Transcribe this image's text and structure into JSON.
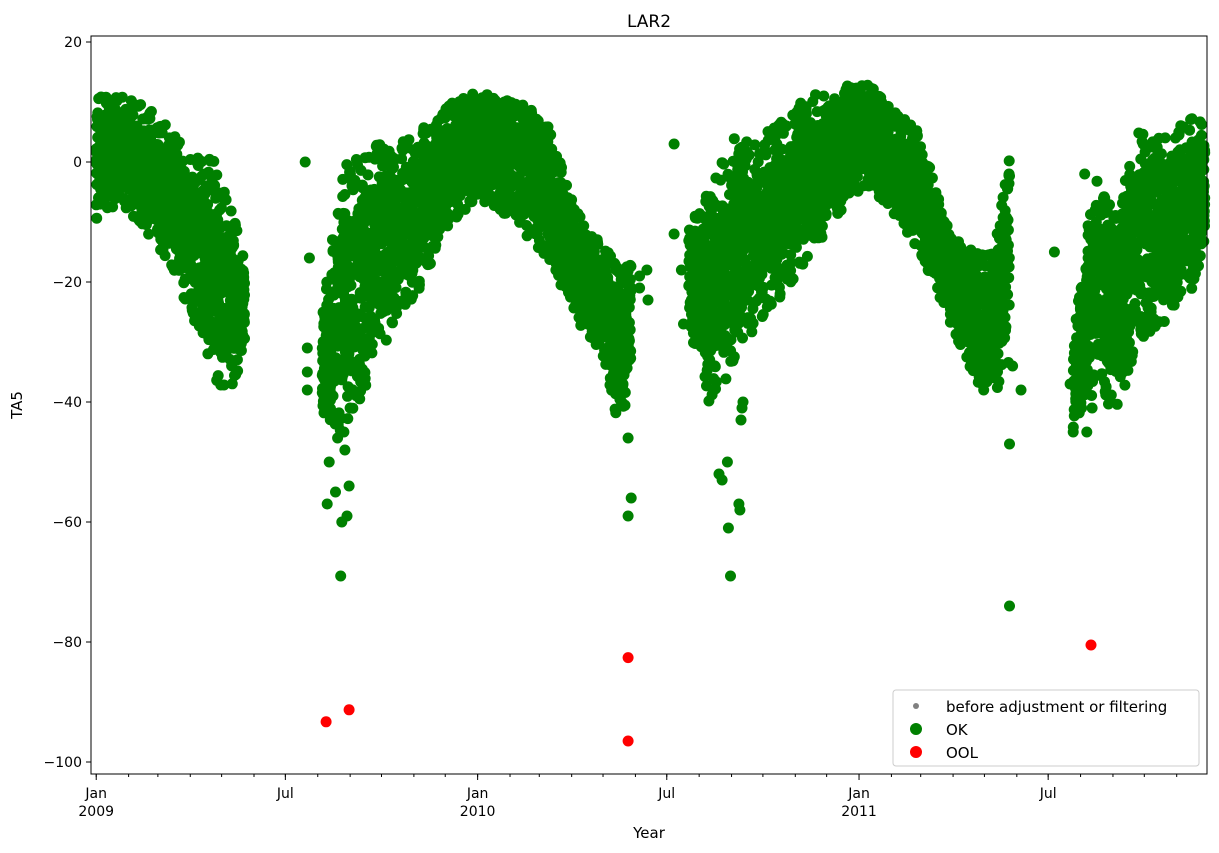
{
  "chart_data": {
    "type": "scatter",
    "title": "LAR2",
    "xlabel": "Year",
    "ylabel": "TA5",
    "xlim": [
      "2008-12-27",
      "2011-11-30"
    ],
    "ylim": [
      -102,
      21
    ],
    "y_ticks": [
      20,
      0,
      -20,
      -40,
      -60,
      -80,
      -100
    ],
    "x_major_ticks": [
      {
        "date": "2009-01-01",
        "label": "Jan",
        "year_label": "2009"
      },
      {
        "date": "2009-07-01",
        "label": "Jul",
        "year_label": ""
      },
      {
        "date": "2010-01-01",
        "label": "Jan",
        "year_label": "2010"
      },
      {
        "date": "2010-07-01",
        "label": "Jul",
        "year_label": ""
      },
      {
        "date": "2011-01-01",
        "label": "Jan",
        "year_label": "2011"
      },
      {
        "date": "2011-07-01",
        "label": "Jul",
        "year_label": ""
      }
    ],
    "grid": false,
    "legend_position": "bottom-right",
    "colors": {
      "before": "#808080",
      "ok": "#008000",
      "ool": "#ff0000"
    },
    "series": [
      {
        "name": "before adjustment or filtering",
        "marker": "small-dot",
        "color": "#808080",
        "points": []
      },
      {
        "name": "OK",
        "marker": "dot",
        "color": "#008000",
        "seasonal_band": [
          {
            "x": "2009-01-01",
            "low": -10,
            "high": 13
          },
          {
            "x": "2009-01-25",
            "low": -7,
            "high": 11
          },
          {
            "x": "2009-02-20",
            "low": -12,
            "high": 9
          },
          {
            "x": "2009-03-15",
            "low": -18,
            "high": 5
          },
          {
            "x": "2009-04-05",
            "low": -27,
            "high": 2
          },
          {
            "x": "2009-04-25",
            "low": -38,
            "high": 0
          },
          {
            "x": "2009-05-15",
            "low": -37,
            "high": -9
          },
          {
            "x": "2009-05-23",
            "low": -31,
            "high": -17
          },
          {
            "x": "2009-08-05",
            "low": -45,
            "high": -25
          },
          {
            "x": "2009-08-25",
            "low": -45,
            "high": -1
          },
          {
            "x": "2009-09-15",
            "low": -40,
            "high": 3
          },
          {
            "x": "2009-10-10",
            "low": -28,
            "high": 3
          },
          {
            "x": "2009-11-05",
            "low": -22,
            "high": 5
          },
          {
            "x": "2009-12-01",
            "low": -12,
            "high": 9
          },
          {
            "x": "2009-12-25",
            "low": -7,
            "high": 12
          },
          {
            "x": "2010-01-20",
            "low": -8,
            "high": 11
          },
          {
            "x": "2010-02-15",
            "low": -12,
            "high": 10
          },
          {
            "x": "2010-03-10",
            "low": -17,
            "high": 6
          },
          {
            "x": "2010-04-05",
            "low": -26,
            "high": -8
          },
          {
            "x": "2010-04-30",
            "low": -33,
            "high": -14
          },
          {
            "x": "2010-05-18",
            "low": -45,
            "high": -17
          },
          {
            "x": "2010-05-28",
            "low": -34,
            "high": -16
          },
          {
            "x": "2010-07-22",
            "low": -28,
            "high": -9
          },
          {
            "x": "2010-08-10",
            "low": -40,
            "high": -5
          },
          {
            "x": "2010-09-01",
            "low": -35,
            "high": 4
          },
          {
            "x": "2010-09-25",
            "low": -27,
            "high": 3
          },
          {
            "x": "2010-10-20",
            "low": -22,
            "high": 8
          },
          {
            "x": "2010-11-15",
            "low": -16,
            "high": 11
          },
          {
            "x": "2010-12-10",
            "low": -9,
            "high": 12
          },
          {
            "x": "2011-01-05",
            "low": -4,
            "high": 14
          },
          {
            "x": "2011-02-01",
            "low": -8,
            "high": 9
          },
          {
            "x": "2011-02-28",
            "low": -15,
            "high": 5
          },
          {
            "x": "2011-03-25",
            "low": -25,
            "high": -10
          },
          {
            "x": "2011-04-20",
            "low": -36,
            "high": -15
          },
          {
            "x": "2011-05-10",
            "low": -40,
            "high": -15
          },
          {
            "x": "2011-05-25",
            "low": -33,
            "high": 1
          },
          {
            "x": "2011-07-25",
            "low": -45,
            "high": -28
          },
          {
            "x": "2011-08-15",
            "low": -38,
            "high": -2
          },
          {
            "x": "2011-09-05",
            "low": -42,
            "high": -9
          },
          {
            "x": "2011-09-25",
            "low": -30,
            "high": 6
          },
          {
            "x": "2011-10-20",
            "low": -27,
            "high": 4
          },
          {
            "x": "2011-11-12",
            "low": -23,
            "high": 7
          },
          {
            "x": "2011-11-28",
            "low": -14,
            "high": 8
          }
        ],
        "outlier_points": [
          {
            "x": "2009-07-20",
            "y": 0
          },
          {
            "x": "2009-07-24",
            "y": -16
          },
          {
            "x": "2009-07-22",
            "y": -31
          },
          {
            "x": "2009-07-22",
            "y": -35
          },
          {
            "x": "2009-07-22",
            "y": -38
          },
          {
            "x": "2009-08-10",
            "y": -57
          },
          {
            "x": "2009-08-12",
            "y": -50
          },
          {
            "x": "2009-08-18",
            "y": -55
          },
          {
            "x": "2009-08-20",
            "y": -46
          },
          {
            "x": "2009-08-23",
            "y": -69
          },
          {
            "x": "2009-08-24",
            "y": -60
          },
          {
            "x": "2009-08-27",
            "y": -48
          },
          {
            "x": "2009-08-26",
            "y": -45
          },
          {
            "x": "2009-08-29",
            "y": -59
          },
          {
            "x": "2009-08-31",
            "y": -54
          },
          {
            "x": "2009-09-01",
            "y": -41
          },
          {
            "x": "2010-05-25",
            "y": -46
          },
          {
            "x": "2010-05-25",
            "y": -59
          },
          {
            "x": "2010-05-28",
            "y": -56
          },
          {
            "x": "2010-06-05",
            "y": -21
          },
          {
            "x": "2010-06-05",
            "y": -19
          },
          {
            "x": "2010-06-12",
            "y": -18
          },
          {
            "x": "2010-06-13",
            "y": -23
          },
          {
            "x": "2010-07-08",
            "y": 3
          },
          {
            "x": "2010-07-08",
            "y": -12
          },
          {
            "x": "2010-07-15",
            "y": -18
          },
          {
            "x": "2010-07-17",
            "y": -27
          },
          {
            "x": "2010-08-20",
            "y": -52
          },
          {
            "x": "2010-08-23",
            "y": -53
          },
          {
            "x": "2010-08-28",
            "y": -50
          },
          {
            "x": "2010-08-29",
            "y": -61
          },
          {
            "x": "2010-08-31",
            "y": -69
          },
          {
            "x": "2010-09-08",
            "y": -57
          },
          {
            "x": "2010-09-09",
            "y": -58
          },
          {
            "x": "2010-09-10",
            "y": -43
          },
          {
            "x": "2010-09-11",
            "y": -41
          },
          {
            "x": "2010-09-12",
            "y": -40
          },
          {
            "x": "2011-05-25",
            "y": -47
          },
          {
            "x": "2011-05-25",
            "y": -74
          },
          {
            "x": "2011-05-28",
            "y": -34
          },
          {
            "x": "2011-06-05",
            "y": -38
          },
          {
            "x": "2011-07-07",
            "y": -15
          },
          {
            "x": "2011-07-22",
            "y": -37
          },
          {
            "x": "2011-07-25",
            "y": -45
          },
          {
            "x": "2011-08-02",
            "y": -41
          },
          {
            "x": "2011-08-05",
            "y": -2
          },
          {
            "x": "2011-08-07",
            "y": -45
          },
          {
            "x": "2011-08-12",
            "y": -41
          },
          {
            "x": "2011-08-15",
            "y": -8
          }
        ]
      },
      {
        "name": "OOL",
        "marker": "dot",
        "color": "#ff0000",
        "points": [
          {
            "x": "2009-08-09",
            "y": -93.3
          },
          {
            "x": "2009-08-31",
            "y": -91.3
          },
          {
            "x": "2010-05-25",
            "y": -82.6
          },
          {
            "x": "2010-05-25",
            "y": -96.5
          },
          {
            "x": "2011-08-11",
            "y": -80.5
          }
        ]
      }
    ]
  }
}
